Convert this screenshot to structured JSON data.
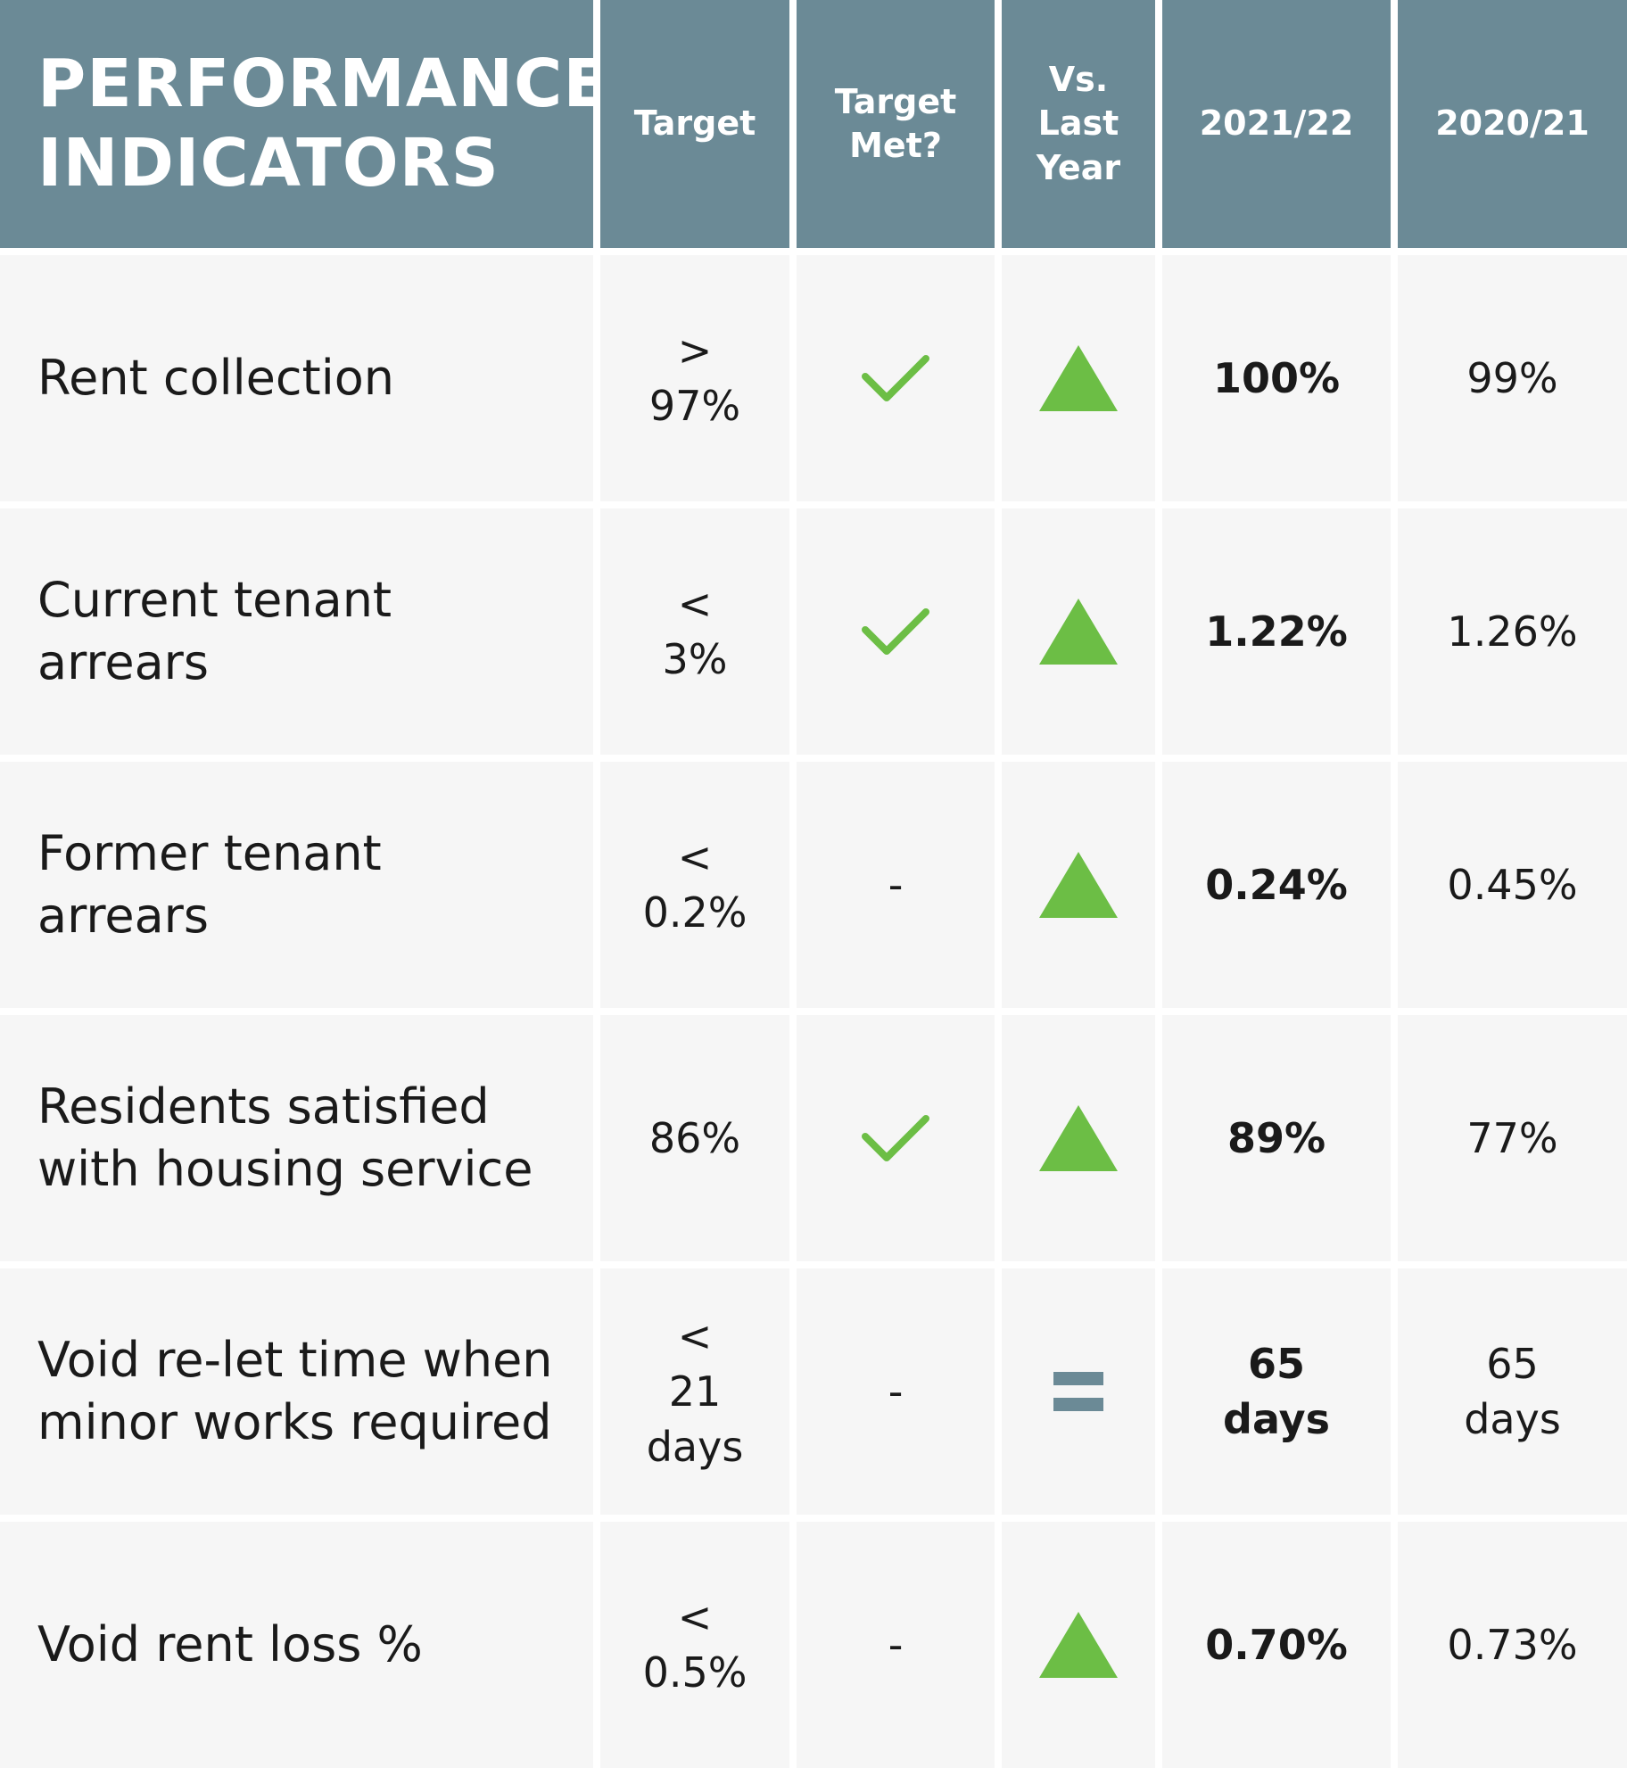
{
  "header": {
    "title": "PERFORMANCE\nINDICATORS",
    "target": "Target",
    "target_met": "Target\nMet?",
    "vs_last_year": "Vs.\nLast\nYear",
    "year_current": "2021/22",
    "year_previous": "2020/21"
  },
  "colors": {
    "header_bg": "#6b8a96",
    "row_bg": "#f6f6f6",
    "check_green": "#6cbe45",
    "up_triangle_green": "#6cbe45",
    "equal_grey": "#6b8a96"
  },
  "rows": [
    {
      "indicator": "Rent collection",
      "target": ">\n97%",
      "target_met": "check",
      "target_met_text": "",
      "trend": "up",
      "current": "100%",
      "previous": "99%"
    },
    {
      "indicator": "Current tenant\narrears",
      "target": "<\n3%",
      "target_met": "check",
      "target_met_text": "",
      "trend": "up",
      "current": "1.22%",
      "previous": "1.26%"
    },
    {
      "indicator": "Former tenant\narrears",
      "target": "<\n0.2%",
      "target_met": "dash",
      "target_met_text": "-",
      "trend": "up",
      "current": "0.24%",
      "previous": "0.45%"
    },
    {
      "indicator": "Residents satisfied\nwith housing service",
      "target": "86%",
      "target_met": "check",
      "target_met_text": "",
      "trend": "up",
      "current": "89%",
      "previous": "77%"
    },
    {
      "indicator": "Void re-let time when\nminor works required",
      "target": "<\n21\ndays",
      "target_met": "dash",
      "target_met_text": "-",
      "trend": "equal",
      "current": "65\ndays",
      "previous": "65\ndays"
    },
    {
      "indicator": "Void rent loss %",
      "target": "<\n0.5%",
      "target_met": "dash",
      "target_met_text": "-",
      "trend": "up",
      "current": "0.70%",
      "previous": "0.73%"
    }
  ]
}
